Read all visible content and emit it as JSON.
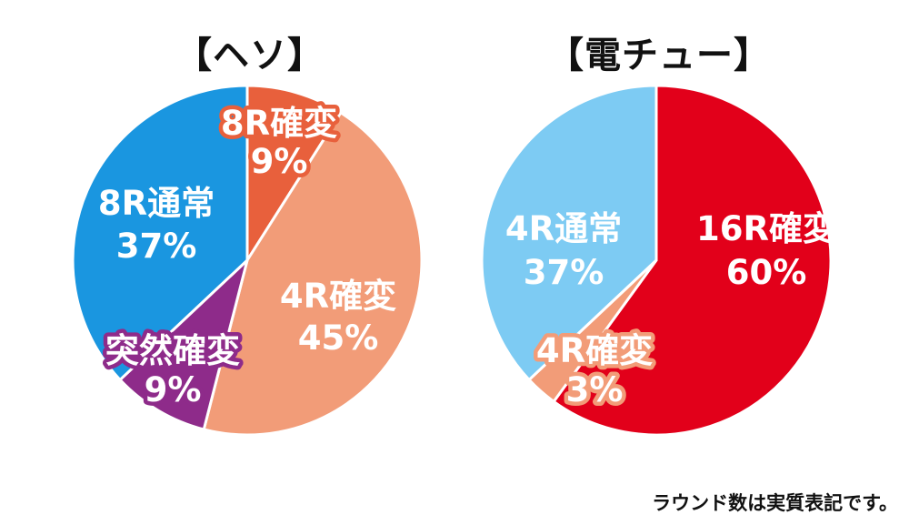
{
  "chart_data": [
    {
      "type": "pie",
      "title": "【ヘソ】",
      "slices": [
        {
          "label": "8R確変",
          "value": 9,
          "value_label": "9%",
          "color": "#e8603c",
          "outline": "#e8603c"
        },
        {
          "label": "4R確変",
          "value": 45,
          "value_label": "45%",
          "color": "#f29c78",
          "outline": null
        },
        {
          "label": "突然確変",
          "value": 9,
          "value_label": "9%",
          "color": "#8e2b8a",
          "outline": "#8e2b8a"
        },
        {
          "label": "8R通常",
          "value": 37,
          "value_label": "37%",
          "color": "#1a96e0",
          "outline": null
        }
      ]
    },
    {
      "type": "pie",
      "title": "【電チュー】",
      "slices": [
        {
          "label": "16R確変",
          "value": 60,
          "value_label": "60%",
          "color": "#e2001a",
          "outline": null
        },
        {
          "label": "4R確変",
          "value": 3,
          "value_label": "3%",
          "color": "#f29c78",
          "outline": "#f29c78"
        },
        {
          "label": "4R通常",
          "value": 37,
          "value_label": "37%",
          "color": "#7dcbf3",
          "outline": null
        }
      ]
    }
  ],
  "footnote": "ラウンド数は実質表記です。"
}
